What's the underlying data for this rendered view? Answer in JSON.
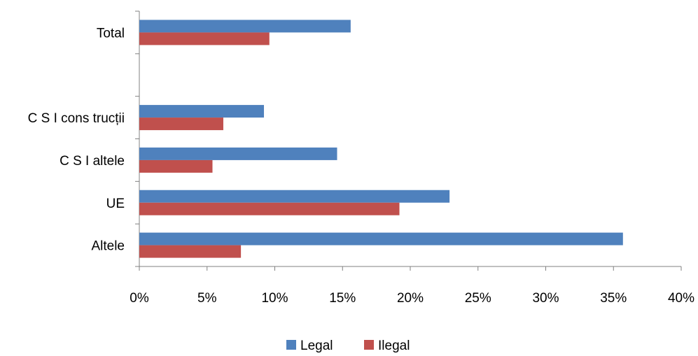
{
  "chart_data": {
    "type": "bar",
    "orientation": "horizontal",
    "categories": [
      "Altele",
      "UE",
      "C S I altele",
      "C S I cons trucții",
      "",
      "Total"
    ],
    "series": [
      {
        "name": "Legal",
        "color": "#4F81BD",
        "values": [
          35.7,
          22.9,
          14.6,
          9.2,
          null,
          15.6
        ]
      },
      {
        "name": "Ilegal",
        "color": "#C0504D",
        "values": [
          7.5,
          19.2,
          5.4,
          6.2,
          null,
          9.6
        ]
      }
    ],
    "x_ticks": [
      "0%",
      "5%",
      "10%",
      "15%",
      "20%",
      "25%",
      "30%",
      "35%",
      "40%"
    ],
    "xlim": [
      0,
      40
    ],
    "unit": "%",
    "legend_position": "bottom",
    "grid": false
  }
}
